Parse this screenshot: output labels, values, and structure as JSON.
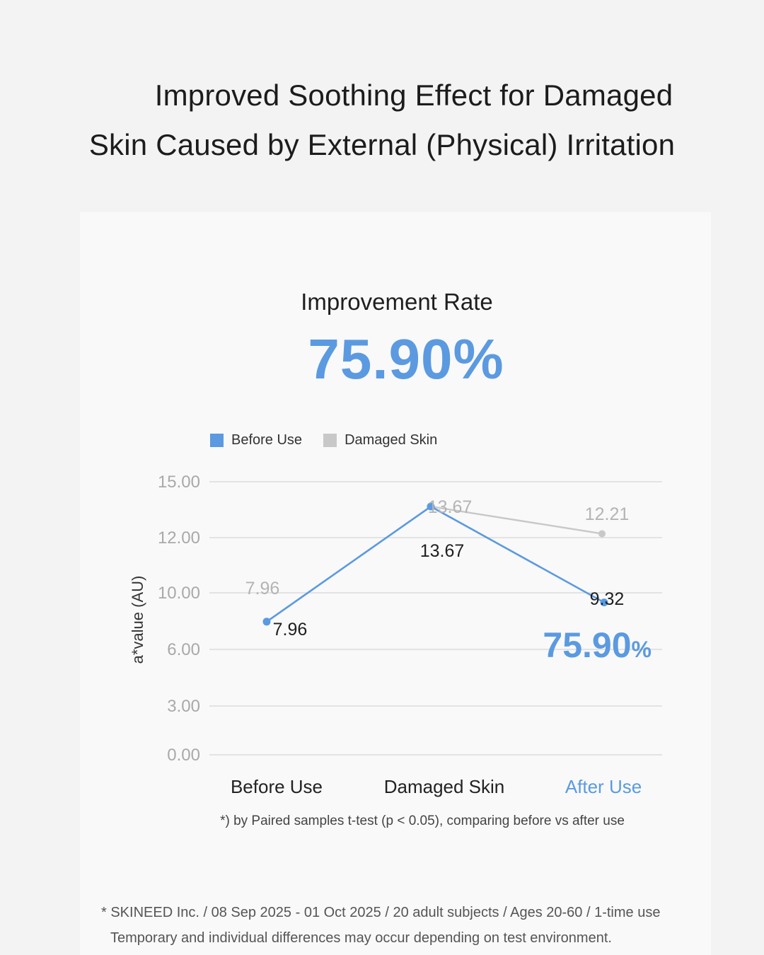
{
  "headline": {
    "line1": "Improved Soothing Effect for Damaged",
    "line2": "Skin Caused by External (Physical) Irritation"
  },
  "improvement": {
    "label": "Improvement Rate",
    "value": "75.90%"
  },
  "colors": {
    "accent": "#5b9ae0",
    "damaged": "#c8c8c8",
    "grid": "#d6d6d6"
  },
  "chart_data": {
    "type": "line",
    "categories": [
      "Before Use",
      "Damaged Skin",
      "After Use"
    ],
    "ylabel": "a*value (AU)",
    "yticks": [
      "15.00",
      "12.00",
      "10.00",
      "6.00",
      "3.00",
      "0.00"
    ],
    "legend": [
      "Before Use",
      "Damaged Skin"
    ],
    "legend_position": "top-left",
    "grid": true,
    "series": [
      {
        "name": "Before Use",
        "color": "#5b9ae0",
        "values": [
          7.96,
          13.67,
          9.32
        ],
        "labels": [
          "7.96",
          "13.67",
          "9.32"
        ]
      },
      {
        "name": "Damaged Skin",
        "color": "#c8c8c8",
        "values": [
          7.96,
          13.67,
          12.21
        ],
        "labels": [
          "7.96",
          "13.67",
          "12.21"
        ]
      }
    ],
    "annotation": {
      "number": "75.90",
      "unit": "%"
    }
  },
  "footnotes": {
    "stat": "*) by Paired samples t-test (p < 0.05), comparing before vs after use",
    "source_line1": "* SKINEED Inc. / 08 Sep 2025 - 01 Oct 2025 / 20 adult subjects / Ages 20-60 / 1-time use",
    "source_line2": "Temporary and individual differences may occur depending on test environment."
  }
}
